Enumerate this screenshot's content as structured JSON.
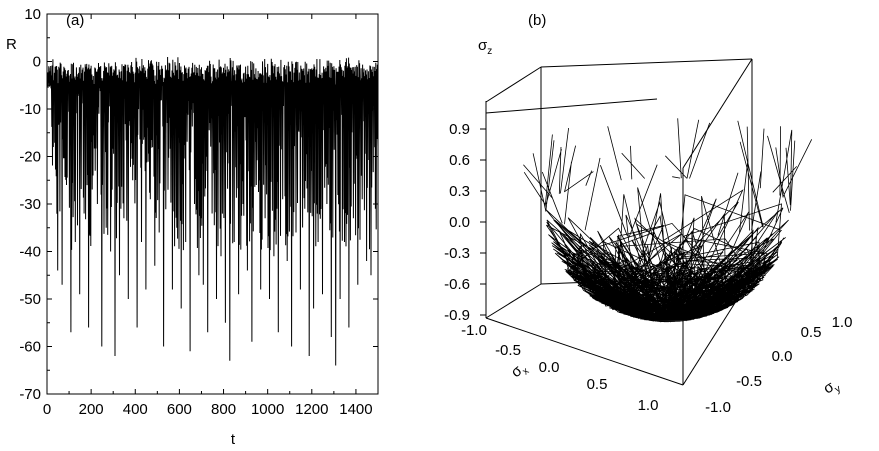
{
  "chart_data": [
    {
      "type": "line",
      "panel_label": "(a)",
      "xlabel": "t",
      "ylabel": "R",
      "xlim": [
        0,
        1500
      ],
      "ylim": [
        -70,
        10
      ],
      "x_ticks": [
        "0",
        "200",
        "400",
        "600",
        "800",
        "1000",
        "1200",
        "1400"
      ],
      "y_ticks": [
        "10",
        "0",
        "-10",
        "-20",
        "-30",
        "-40",
        "-50",
        "-60",
        "-70"
      ],
      "series": [
        {
          "x": [
            0,
            20,
            40,
            60,
            80,
            100,
            120,
            140,
            160,
            180,
            200,
            220,
            240,
            260,
            280,
            300,
            320,
            340,
            360,
            380,
            400,
            420,
            440,
            460,
            480,
            500,
            520,
            540,
            560,
            580,
            600,
            620,
            640,
            660,
            680,
            700,
            720,
            740,
            760,
            780,
            800,
            820,
            840,
            860,
            880,
            900,
            920,
            940,
            960,
            980,
            1000,
            1020,
            1040,
            1060,
            1080,
            1100,
            1120,
            1140,
            1160,
            1180,
            1200,
            1220,
            1240,
            1260,
            1280,
            1300,
            1320,
            1340,
            1360,
            1380,
            1400,
            1420,
            1440,
            1460,
            1480,
            1500
          ],
          "y": [
            -1,
            -18,
            -44,
            -47,
            -26,
            -57,
            -38,
            -49,
            -32,
            -56,
            -24,
            -30,
            -60,
            -35,
            -40,
            -62,
            -45,
            -33,
            -50,
            -25,
            -56,
            -38,
            -48,
            -29,
            -43,
            -36,
            -60,
            -27,
            -48,
            -35,
            -52,
            -38,
            -61,
            -30,
            -45,
            -47,
            -57,
            -32,
            -50,
            -41,
            -55,
            -63,
            -38,
            -49,
            -30,
            -44,
            -59,
            -26,
            -48,
            -33,
            -50,
            -41,
            -57,
            -29,
            -42,
            -60,
            -36,
            -48,
            -31,
            -62,
            -52,
            -38,
            -49,
            -30,
            -58,
            -64,
            -50,
            -38,
            -56,
            -33,
            -47,
            -29,
            -42,
            -45,
            -31,
            -18
          ]
        }
      ]
    },
    {
      "type": "scatter",
      "subtype": "3d-trajectory",
      "panel_label": "(b)",
      "xlabel": "σx",
      "ylabel": "σy",
      "zlabel": "σz",
      "xlim": [
        -1.0,
        1.0
      ],
      "ylim": [
        -1.0,
        1.0
      ],
      "zlim": [
        -0.9,
        0.9
      ],
      "x_ticks": [
        "-1.0",
        "-0.5",
        "0.0",
        "0.5",
        "1.0"
      ],
      "y_ticks": [
        "-1.0",
        "-0.5",
        "0.0",
        "0.5",
        "1.0"
      ],
      "z_ticks": [
        "0.9",
        "0.6",
        "0.3",
        "0.0",
        "-0.3",
        "-0.6",
        "-0.9"
      ],
      "description_shape": "hemisphere"
    }
  ]
}
